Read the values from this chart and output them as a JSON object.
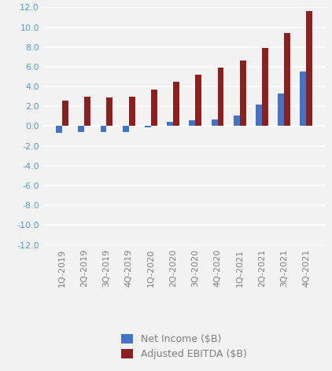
{
  "categories": [
    "1Q-2019",
    "2Q-2019",
    "3Q-2019",
    "4Q-2019",
    "1Q-2020",
    "2Q-2020",
    "3Q-2020",
    "4Q-2020",
    "1Q-2021",
    "2Q-2021",
    "3Q-2021",
    "4Q-2021"
  ],
  "net_income": [
    -0.7,
    -0.6,
    -0.6,
    -0.6,
    -0.1,
    0.4,
    0.6,
    0.7,
    1.1,
    2.2,
    3.3,
    5.5
  ],
  "adj_ebitda": [
    2.6,
    3.0,
    2.9,
    3.0,
    3.7,
    4.5,
    5.2,
    5.9,
    6.6,
    7.9,
    9.4,
    11.6
  ],
  "net_income_color": "#4472C4",
  "adj_ebitda_color": "#8B2020",
  "background_color": "#F2F2F2",
  "grid_color": "#FFFFFF",
  "ylim": [
    -12.0,
    12.0
  ],
  "yticks": [
    -12.0,
    -10.0,
    -8.0,
    -6.0,
    -4.0,
    -2.0,
    0.0,
    2.0,
    4.0,
    6.0,
    8.0,
    10.0,
    12.0
  ],
  "legend_net_income": "Net Income ($B)",
  "legend_adj_ebitda": "Adjusted EBITDA ($B)",
  "tick_fontsize": 8,
  "legend_fontsize": 9,
  "label_color": "#7F7F7F",
  "ytick_color": "#5B9BD5"
}
